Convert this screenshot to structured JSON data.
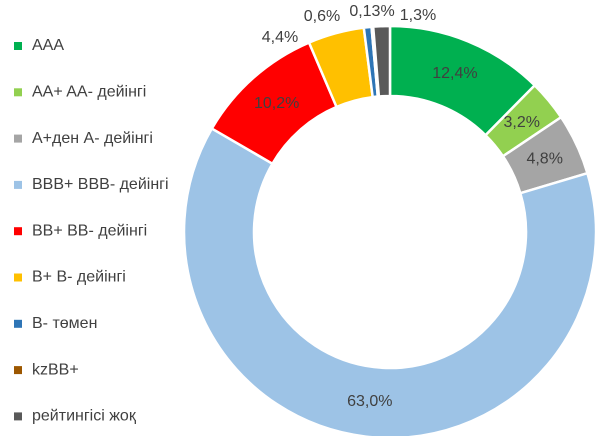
{
  "chart_data": {
    "type": "donut",
    "categories": [
      "AAA",
      "AA+ AA-  дейінгі",
      "A+ден A- дейінгі",
      "BBB+ BBB- дейінгі",
      "BB+ BB- дейінгі",
      "B+ B- дейінгі",
      "B- төмен",
      "kzBB+",
      "рейтингісі жоқ"
    ],
    "values": [
      12.4,
      3.2,
      4.8,
      63.0,
      10.2,
      4.4,
      0.6,
      0.13,
      1.3
    ],
    "value_labels": [
      "12,4%",
      "3,2%",
      "4,8%",
      "63,0%",
      "10,2%",
      "4,4%",
      "0,6%",
      "0,13%",
      "1,3%"
    ],
    "colors": [
      "#00b050",
      "#92d050",
      "#a5a5a5",
      "#9dc3e6",
      "#ff0000",
      "#ffc000",
      "#2e75b6",
      "#9c5700",
      "#595959"
    ],
    "legend": "left"
  }
}
